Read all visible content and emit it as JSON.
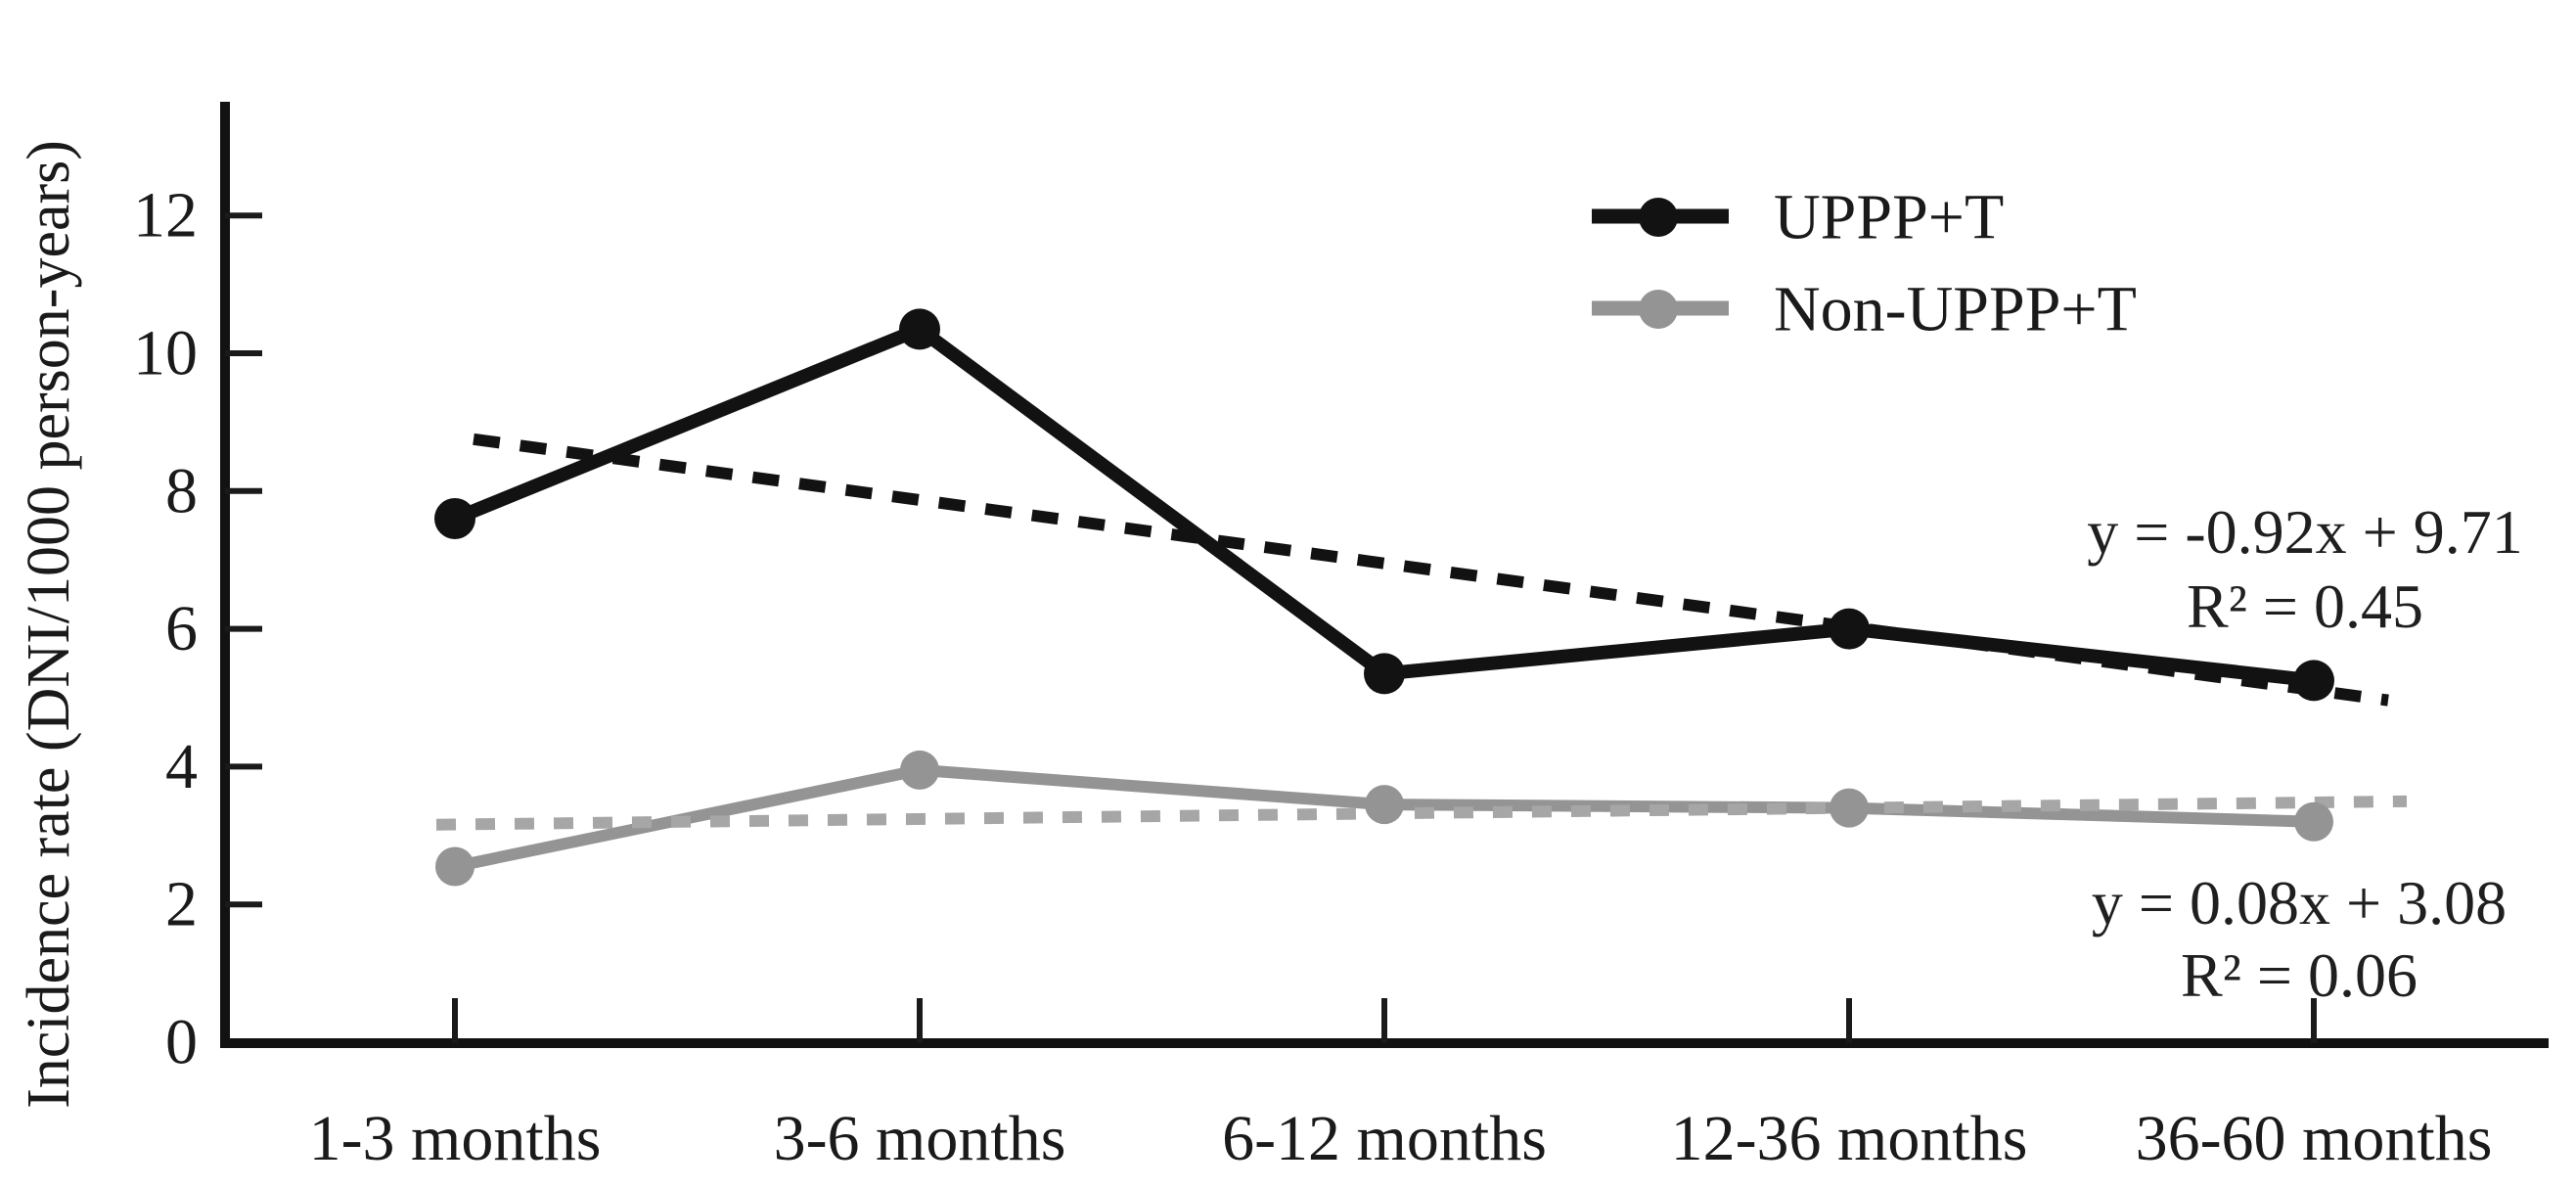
{
  "chart_data": {
    "type": "line",
    "title": "",
    "xlabel": "",
    "ylabel": "Incidence rate (DNI/1000 person-years)",
    "categories": [
      "1-3 months",
      "3-6 months",
      "6-12 months",
      "12-36 months",
      "36-60 months"
    ],
    "yticks": [
      0,
      2,
      4,
      6,
      8,
      10,
      12
    ],
    "ylim": [
      0,
      13.6
    ],
    "grid": false,
    "legend_position": "inside-top-right",
    "series": [
      {
        "name": "UPPP+T",
        "color": "#121212",
        "marker": "circle",
        "values": [
          7.6,
          10.35,
          5.35,
          6.0,
          5.25
        ]
      },
      {
        "name": "Non-UPPP+T",
        "color": "#949494",
        "marker": "circle",
        "values": [
          2.55,
          3.95,
          3.45,
          3.4,
          3.2
        ]
      }
    ],
    "trendlines": [
      {
        "series": "UPPP+T",
        "equation": "y = -0.92x + 9.71",
        "r2": "R² = 0.45",
        "slope": -0.92,
        "intercept": 9.71,
        "color": "#121212",
        "style": "dashed"
      },
      {
        "series": "Non-UPPP+T",
        "equation": "y = 0.08x + 3.08",
        "r2": "R² = 0.06",
        "slope": 0.08,
        "intercept": 3.08,
        "color": "#a6a6a6",
        "style": "dashed"
      }
    ]
  }
}
